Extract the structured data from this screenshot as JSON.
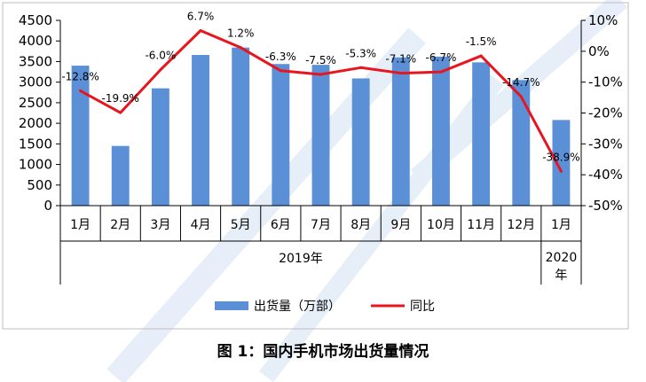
{
  "chart_data": {
    "type": "bar",
    "categories": [
      "1月",
      "2月",
      "3月",
      "4月",
      "5月",
      "6月",
      "7月",
      "8月",
      "9月",
      "10月",
      "11月",
      "12月",
      "1月"
    ],
    "groups": [
      {
        "label": "2019年",
        "span": 12
      },
      {
        "label": "2020\n年",
        "span": 1
      }
    ],
    "series": [
      {
        "name": "出货量（万部）",
        "type": "bar",
        "axis": "left",
        "color": "#5b8fd6",
        "values": [
          3400,
          1450,
          2850,
          3660,
          3840,
          3440,
          3420,
          3090,
          3600,
          3620,
          3480,
          3050,
          2080
        ]
      },
      {
        "name": "同比",
        "type": "line",
        "axis": "right",
        "color": "#e8141e",
        "values": [
          -12.8,
          -19.9,
          -6.0,
          6.7,
          1.2,
          -6.3,
          -7.5,
          -5.3,
          -7.1,
          -6.7,
          -1.5,
          -14.7,
          -38.9
        ]
      }
    ],
    "point_labels": [
      "-12.8%",
      "-19.9%",
      "-6.0%",
      "6.7%",
      "1.2%",
      "-6.3%",
      "-7.5%",
      "-5.3%",
      "-7.1%",
      "-6.7%",
      "-1.5%",
      "-14.7%",
      "-38.9%"
    ],
    "y_left": {
      "min": 0,
      "max": 4500,
      "ticks": [
        "0",
        "500",
        "1000",
        "1500",
        "2000",
        "2500",
        "3000",
        "3500",
        "4000",
        "4500"
      ]
    },
    "y_right": {
      "min": -50,
      "max": 10,
      "ticks": [
        "-50%",
        "-40%",
        "-30%",
        "-20%",
        "-10%",
        "0%",
        "10%"
      ]
    },
    "legend_position": "bottom",
    "grid": false
  },
  "caption": "图 1：国内手机市场出货量情况"
}
